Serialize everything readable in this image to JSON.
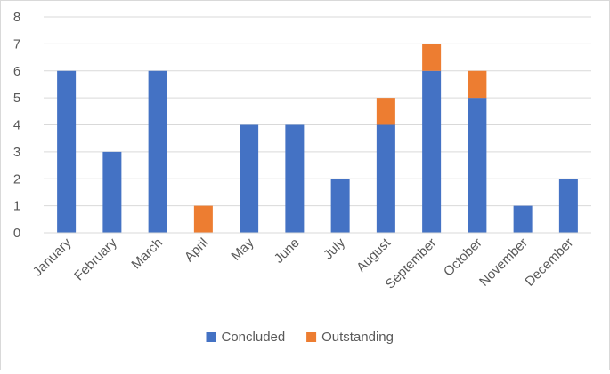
{
  "chart_data": {
    "type": "bar",
    "stacked": true,
    "title": "",
    "xlabel": "",
    "ylabel": "",
    "ylim": [
      0,
      8
    ],
    "yticks": [
      "0",
      "1",
      "2",
      "3",
      "4",
      "5",
      "6",
      "7",
      "8"
    ],
    "grid": true,
    "legend_position": "bottom",
    "categories": [
      "January",
      "February",
      "March",
      "April",
      "May",
      "June",
      "July",
      "August",
      "September",
      "October",
      "November",
      "December"
    ],
    "series": [
      {
        "name": "Concluded",
        "color": "#4472c4",
        "values": [
          6,
          3,
          6,
          0,
          4,
          4,
          2,
          4,
          6,
          5,
          1,
          2
        ]
      },
      {
        "name": "Outstanding",
        "color": "#ed7d31",
        "values": [
          0,
          0,
          0,
          1,
          0,
          0,
          0,
          1,
          1,
          1,
          0,
          0
        ]
      }
    ]
  }
}
